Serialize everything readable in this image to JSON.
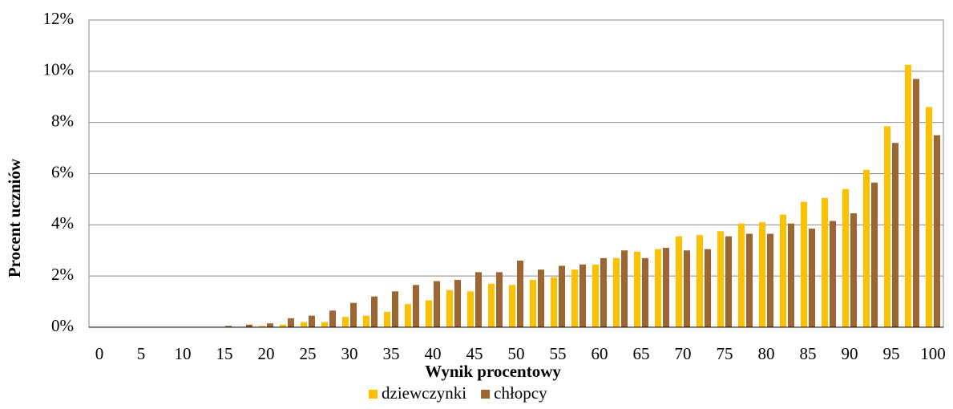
{
  "chart_data": {
    "type": "bar",
    "x_label": "Wynik procentowy",
    "y_label": "Procent uczniów",
    "categories": [
      "0",
      null,
      "5",
      null,
      "10",
      null,
      "15",
      null,
      "20",
      null,
      "25",
      null,
      "30",
      null,
      "35",
      null,
      "40",
      null,
      "45",
      null,
      "50",
      null,
      "55",
      null,
      "60",
      null,
      "65",
      null,
      "70",
      null,
      "75",
      null,
      "80",
      null,
      "85",
      null,
      "90",
      null,
      "95",
      null,
      "100"
    ],
    "series": [
      {
        "name": "dziewczynki",
        "color": "#ffc000",
        "values": [
          0,
          0,
          0,
          0,
          0,
          0,
          0,
          0,
          0.05,
          0.1,
          0.2,
          0.2,
          0.4,
          0.45,
          0.6,
          0.9,
          1.05,
          1.45,
          1.4,
          1.7,
          1.65,
          1.85,
          1.95,
          2.25,
          2.45,
          2.7,
          2.95,
          3.05,
          3.55,
          3.6,
          3.75,
          4.05,
          4.1,
          4.4,
          4.9,
          5.05,
          5.4,
          6.15,
          7.85,
          10.25,
          8.6
        ]
      },
      {
        "name": "chłopcy",
        "color": "#9c6531",
        "values": [
          0,
          0,
          0,
          0,
          0,
          0,
          0.05,
          0.1,
          0.15,
          0.35,
          0.45,
          0.65,
          0.95,
          1.2,
          1.4,
          1.65,
          1.8,
          1.85,
          2.15,
          2.15,
          2.6,
          2.25,
          2.4,
          2.45,
          2.7,
          3.0,
          2.7,
          3.1,
          3.0,
          3.05,
          3.55,
          3.65,
          3.65,
          4.05,
          3.85,
          4.15,
          4.45,
          5.65,
          7.2,
          9.7,
          7.5
        ]
      }
    ],
    "ylim": [
      0,
      12
    ],
    "yticks": [
      {
        "value": 0,
        "label": "0%"
      },
      {
        "value": 2,
        "label": "2%"
      },
      {
        "value": 4,
        "label": "4%"
      },
      {
        "value": 6,
        "label": "6%"
      },
      {
        "value": 8,
        "label": "8%"
      },
      {
        "value": 10,
        "label": "10%"
      },
      {
        "value": 12,
        "label": "12%"
      }
    ],
    "grid": true,
    "legend": "bottom"
  }
}
